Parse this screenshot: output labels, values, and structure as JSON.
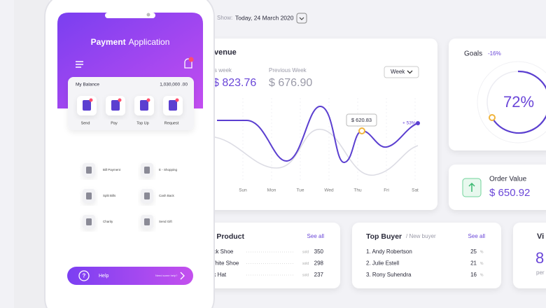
{
  "phone": {
    "title_bold": "Payment",
    "title_light": "Application",
    "balance_label": "My Balance",
    "balance_amount": "1,030,000 .00",
    "actions": [
      "Send",
      "Pay",
      "Top Up",
      "Request"
    ],
    "menu": [
      "Bill Payment",
      "E - Shopping",
      "Split Bills",
      "Cash Back",
      "Charity",
      "Send Gift"
    ],
    "help": {
      "label": "Help",
      "hint": "Need some help?"
    }
  },
  "dashboard": {
    "show_label": "Show:",
    "date": "Today, 24 March 2020",
    "revenue": {
      "title": "venue",
      "this_week_label": "s week",
      "this_week_value": "$ 823.76",
      "previous_week_label": "Previous Week",
      "previous_week_value": "$ 676.90",
      "period": "Week",
      "tooltip": "$ 620.83",
      "change": "+ 53%",
      "days": [
        "Sun",
        "Mon",
        "Tue",
        "Wed",
        "Thu",
        "Fri",
        "Sat"
      ]
    },
    "goals": {
      "title": "Goals",
      "change": "-16%",
      "percent": "72%"
    },
    "order_value": {
      "title": "Order Value",
      "value": "$ 650.92"
    },
    "top_product": {
      "title": "p Product",
      "link": "See all",
      "rows": [
        [
          "ack Shoe",
          "sold",
          "350"
        ],
        [
          "White Shoe",
          "sold",
          "298"
        ],
        [
          "nk Hat",
          "sold",
          "237"
        ]
      ]
    },
    "top_buyer": {
      "title": "Top Buyer",
      "subtitle": "/ New buyer",
      "link": "See all",
      "rows": [
        [
          "1. Andy Robertson",
          "25",
          "%"
        ],
        [
          "2. Julie Estell",
          "21",
          "%"
        ],
        [
          "3. Rony Suhendra",
          "16",
          "%"
        ]
      ]
    },
    "visitors": {
      "title": "Vi",
      "value": "8",
      "caption": "per"
    }
  }
}
